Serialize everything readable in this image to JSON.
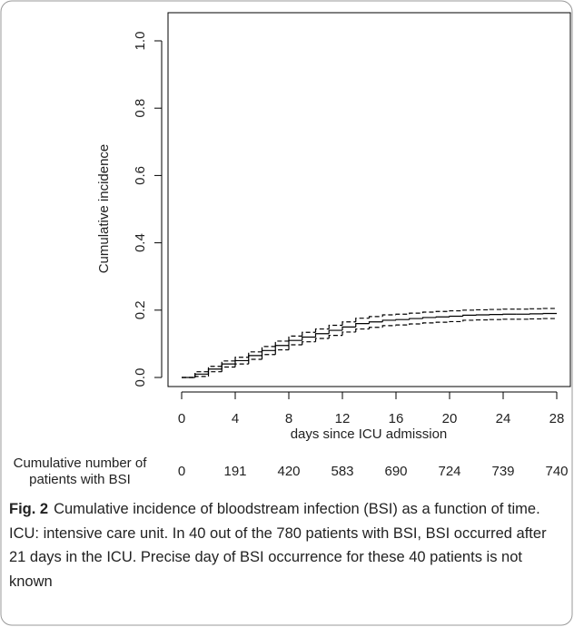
{
  "chart_data": {
    "type": "step",
    "y_label": "Cumulative incidence",
    "x_label": "days since ICU admission",
    "x": [
      0,
      1,
      2,
      3,
      4,
      5,
      6,
      7,
      8,
      9,
      10,
      11,
      12,
      13,
      14,
      15,
      16,
      17,
      18,
      19,
      20,
      21,
      22,
      23,
      24,
      25,
      26,
      27,
      28
    ],
    "series": [
      {
        "color": "#000",
        "dashed": false,
        "values": [
          0,
          0.01,
          0.025,
          0.04,
          0.05,
          0.065,
          0.08,
          0.095,
          0.11,
          0.12,
          0.13,
          0.14,
          0.15,
          0.16,
          0.165,
          0.17,
          0.172,
          0.175,
          0.178,
          0.18,
          0.182,
          0.185,
          0.186,
          0.187,
          0.188,
          0.188,
          0.189,
          0.19,
          0.19
        ]
      },
      {
        "color": "#000",
        "dashed": true,
        "values": [
          0,
          0.017,
          0.033,
          0.049,
          0.06,
          0.076,
          0.092,
          0.108,
          0.123,
          0.134,
          0.144,
          0.155,
          0.165,
          0.176,
          0.181,
          0.186,
          0.188,
          0.191,
          0.194,
          0.196,
          0.198,
          0.2,
          0.201,
          0.202,
          0.203,
          0.203,
          0.204,
          0.205,
          0.205
        ]
      },
      {
        "color": "#000",
        "dashed": true,
        "values": [
          0,
          0.003,
          0.017,
          0.031,
          0.04,
          0.054,
          0.068,
          0.082,
          0.097,
          0.106,
          0.116,
          0.125,
          0.135,
          0.144,
          0.149,
          0.154,
          0.156,
          0.159,
          0.162,
          0.164,
          0.166,
          0.17,
          0.171,
          0.172,
          0.173,
          0.173,
          0.174,
          0.175,
          0.175
        ]
      }
    ],
    "xlim": [
      0,
      28
    ],
    "xticks": [
      0,
      4,
      8,
      12,
      16,
      20,
      24,
      28
    ],
    "ylim": [
      0,
      1
    ],
    "yticks": [
      {
        "value": 0,
        "label": "0.0"
      },
      {
        "value": 0.2,
        "label": "0.2"
      },
      {
        "value": 0.4,
        "label": "0.4"
      },
      {
        "value": 0.6,
        "label": "0.6"
      },
      {
        "value": 0.8,
        "label": "0.8"
      },
      {
        "value": 1,
        "label": "1.0"
      }
    ],
    "risk_table": {
      "label_lines": [
        "Cumulative number of",
        "patients with BSI"
      ],
      "values": [
        0,
        191,
        420,
        583,
        690,
        724,
        739,
        740
      ]
    }
  },
  "caption": {
    "label": "Fig. 2",
    "text": "Cumulative incidence of bloodstream infection (BSI) as a function of time. ICU: intensive care unit. In 40 out of the 780 patients with BSI, BSI occurred after 21 days in the ICU. Precise day of BSI occurrence for these 40 patients is not known"
  }
}
